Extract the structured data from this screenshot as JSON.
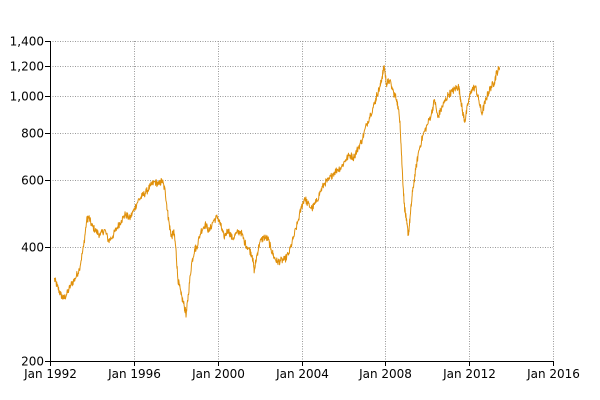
{
  "chart_data": {
    "type": "line",
    "title": "",
    "xlabel": "",
    "ylabel": "",
    "y_scale": "log",
    "xlim": [
      1992.0,
      2016.0
    ],
    "ylim": [
      200,
      1400
    ],
    "grid": true,
    "legend": "none",
    "x_ticks": [
      {
        "value": 1992,
        "label": "Jan 1992"
      },
      {
        "value": 1996,
        "label": "Jan 1996"
      },
      {
        "value": 2000,
        "label": "Jan 2000"
      },
      {
        "value": 2004,
        "label": "Jan 2004"
      },
      {
        "value": 2008,
        "label": "Jan 2008"
      },
      {
        "value": 2012,
        "label": "Jan 2012"
      },
      {
        "value": 2016,
        "label": "Jan 2016"
      }
    ],
    "y_ticks": [
      {
        "value": 200,
        "label": "200"
      },
      {
        "value": 400,
        "label": "400"
      },
      {
        "value": 600,
        "label": "600"
      },
      {
        "value": 800,
        "label": "800"
      },
      {
        "value": 1000,
        "label": "1,000"
      },
      {
        "value": 1200,
        "label": "1,200"
      },
      {
        "value": 1400,
        "label": "1,400"
      }
    ],
    "series": [
      {
        "color": "#e0900a",
        "points": [
          [
            1992.2,
            330
          ],
          [
            1992.35,
            315
          ],
          [
            1992.5,
            300
          ],
          [
            1992.65,
            292
          ],
          [
            1992.8,
            300
          ],
          [
            1993.0,
            318
          ],
          [
            1993.2,
            330
          ],
          [
            1993.4,
            350
          ],
          [
            1993.6,
            400
          ],
          [
            1993.75,
            470
          ],
          [
            1993.85,
            480
          ],
          [
            1994.0,
            455
          ],
          [
            1994.2,
            440
          ],
          [
            1994.4,
            430
          ],
          [
            1994.6,
            445
          ],
          [
            1994.8,
            415
          ],
          [
            1995.0,
            428
          ],
          [
            1995.2,
            450
          ],
          [
            1995.4,
            470
          ],
          [
            1995.6,
            488
          ],
          [
            1995.8,
            475
          ],
          [
            1996.0,
            500
          ],
          [
            1996.2,
            530
          ],
          [
            1996.4,
            545
          ],
          [
            1996.6,
            560
          ],
          [
            1996.8,
            580
          ],
          [
            1997.0,
            595
          ],
          [
            1997.2,
            585
          ],
          [
            1997.35,
            600
          ],
          [
            1997.5,
            560
          ],
          [
            1997.6,
            500
          ],
          [
            1997.7,
            455
          ],
          [
            1997.8,
            425
          ],
          [
            1997.9,
            440
          ],
          [
            1998.0,
            400
          ],
          [
            1998.1,
            330
          ],
          [
            1998.25,
            300
          ],
          [
            1998.4,
            280
          ],
          [
            1998.5,
            265
          ],
          [
            1998.6,
            300
          ],
          [
            1998.75,
            360
          ],
          [
            1998.9,
            395
          ],
          [
            1999.0,
            400
          ],
          [
            1999.2,
            440
          ],
          [
            1999.4,
            460
          ],
          [
            1999.6,
            440
          ],
          [
            1999.8,
            470
          ],
          [
            2000.0,
            480
          ],
          [
            2000.15,
            455
          ],
          [
            2000.3,
            425
          ],
          [
            2000.5,
            445
          ],
          [
            2000.7,
            420
          ],
          [
            2000.9,
            435
          ],
          [
            2001.1,
            440
          ],
          [
            2001.3,
            410
          ],
          [
            2001.5,
            395
          ],
          [
            2001.65,
            380
          ],
          [
            2001.75,
            345
          ],
          [
            2001.85,
            375
          ],
          [
            2002.0,
            410
          ],
          [
            2002.2,
            425
          ],
          [
            2002.4,
            420
          ],
          [
            2002.55,
            395
          ],
          [
            2002.7,
            375
          ],
          [
            2002.85,
            365
          ],
          [
            2003.0,
            368
          ],
          [
            2003.2,
            370
          ],
          [
            2003.4,
            385
          ],
          [
            2003.6,
            420
          ],
          [
            2003.8,
            460
          ],
          [
            2004.0,
            510
          ],
          [
            2004.15,
            540
          ],
          [
            2004.3,
            520
          ],
          [
            2004.5,
            505
          ],
          [
            2004.7,
            525
          ],
          [
            2004.9,
            560
          ],
          [
            2005.1,
            590
          ],
          [
            2005.3,
            600
          ],
          [
            2005.5,
            625
          ],
          [
            2005.7,
            640
          ],
          [
            2005.9,
            650
          ],
          [
            2006.1,
            680
          ],
          [
            2006.3,
            700
          ],
          [
            2006.5,
            690
          ],
          [
            2006.7,
            730
          ],
          [
            2006.9,
            770
          ],
          [
            2007.1,
            840
          ],
          [
            2007.3,
            900
          ],
          [
            2007.5,
            960
          ],
          [
            2007.6,
            1010
          ],
          [
            2007.75,
            1060
          ],
          [
            2007.85,
            1130
          ],
          [
            2007.95,
            1200
          ],
          [
            2008.05,
            1080
          ],
          [
            2008.2,
            1100
          ],
          [
            2008.4,
            1020
          ],
          [
            2008.55,
            980
          ],
          [
            2008.7,
            860
          ],
          [
            2008.8,
            650
          ],
          [
            2008.9,
            520
          ],
          [
            2009.0,
            470
          ],
          [
            2009.1,
            430
          ],
          [
            2009.2,
            490
          ],
          [
            2009.3,
            560
          ],
          [
            2009.45,
            640
          ],
          [
            2009.6,
            720
          ],
          [
            2009.8,
            790
          ],
          [
            2010.0,
            840
          ],
          [
            2010.2,
            900
          ],
          [
            2010.35,
            980
          ],
          [
            2010.5,
            880
          ],
          [
            2010.65,
            920
          ],
          [
            2010.8,
            960
          ],
          [
            2011.0,
            1010
          ],
          [
            2011.2,
            1030
          ],
          [
            2011.35,
            1050
          ],
          [
            2011.5,
            1060
          ],
          [
            2011.6,
            980
          ],
          [
            2011.7,
            900
          ],
          [
            2011.8,
            860
          ],
          [
            2011.95,
            960
          ],
          [
            2012.1,
            1040
          ],
          [
            2012.3,
            1060
          ],
          [
            2012.45,
            980
          ],
          [
            2012.6,
            900
          ],
          [
            2012.75,
            960
          ],
          [
            2012.9,
            1020
          ],
          [
            2013.05,
            1060
          ],
          [
            2013.2,
            1090
          ],
          [
            2013.3,
            1150
          ],
          [
            2013.45,
            1190
          ]
        ]
      }
    ]
  }
}
